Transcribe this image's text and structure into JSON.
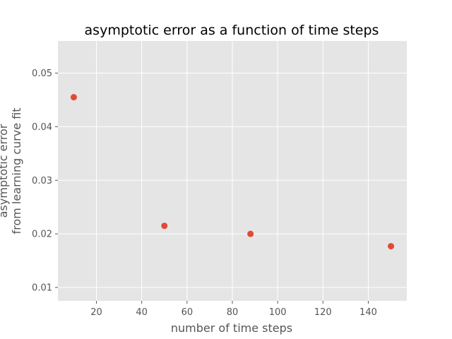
{
  "chart_data": {
    "type": "scatter",
    "title": "asymptotic error as a function of time steps",
    "xlabel": "number of time steps",
    "ylabel": [
      "asymptotic error",
      "from learning curve fit"
    ],
    "x": [
      10,
      50,
      88,
      150
    ],
    "y": [
      0.0455,
      0.0215,
      0.02,
      0.0177
    ],
    "xlim": [
      3,
      157
    ],
    "ylim": [
      0.0075,
      0.056
    ],
    "xticks": [
      20,
      40,
      60,
      80,
      100,
      120,
      140
    ],
    "yticks": [
      0.01,
      0.02,
      0.03,
      0.04,
      0.05
    ],
    "xtick_labels": [
      "20",
      "40",
      "60",
      "80",
      "100",
      "120",
      "140"
    ],
    "ytick_labels": [
      "0.01",
      "0.02",
      "0.03",
      "0.04",
      "0.05"
    ],
    "grid": true,
    "legend": "none",
    "colors": {
      "background": "#e5e5e5",
      "grid": "#ffffff",
      "marker": "#e24a33",
      "text": "#555555"
    }
  }
}
